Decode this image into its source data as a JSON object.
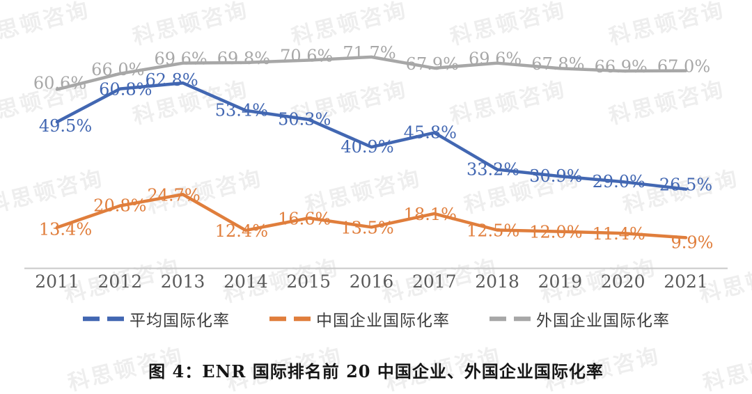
{
  "watermark": {
    "text": "科思顿咨询"
  },
  "caption": {
    "text": "图 4：ENR 国际排名前 20 中国企业、外国企业国际化率"
  },
  "chart_data": {
    "type": "line",
    "title": "图 4：ENR 国际排名前 20 中国企业、外国企业国际化率",
    "categories": [
      "2011",
      "2012",
      "2013",
      "2014",
      "2015",
      "2016",
      "2017",
      "2018",
      "2019",
      "2020",
      "2021"
    ],
    "series": [
      {
        "name": "平均国际化率",
        "color": "#4267B2",
        "values": [
          49.5,
          60.8,
          62.8,
          53.4,
          50.3,
          40.9,
          45.8,
          33.2,
          30.9,
          29.0,
          26.5
        ],
        "labels": [
          "49.5%",
          "60.8%",
          "62.8%",
          "53.4%",
          "50.3%",
          "40.9%",
          "45.8%",
          "33.2%",
          "30.9%",
          "29.0%",
          "26.5%"
        ]
      },
      {
        "name": "中国企业国际化率",
        "color": "#E07E3C",
        "values": [
          13.4,
          20.8,
          24.7,
          12.4,
          16.6,
          13.5,
          18.1,
          12.5,
          12.0,
          11.4,
          9.9
        ],
        "labels": [
          "13.4%",
          "20.8%",
          "24.7%",
          "12.4%",
          "16.6%",
          "13.5%",
          "18.1%",
          "12.5%",
          "12.0%",
          "11.4%",
          "9.9%"
        ]
      },
      {
        "name": "外国企业国际化率",
        "color": "#A7A7A7",
        "values": [
          60.6,
          66.0,
          69.6,
          69.8,
          70.6,
          71.7,
          67.9,
          69.6,
          67.8,
          66.9,
          67.0
        ],
        "labels": [
          "60.6%",
          "66.0%",
          "69.6%",
          "69.8%",
          "70.6%",
          "71.7%",
          "67.9%",
          "69.6%",
          "67.8%",
          "66.9%",
          "67.0%"
        ]
      }
    ],
    "ylim": [
      0,
      80
    ],
    "value_suffix": "%",
    "grid": false,
    "data_labels": true,
    "legend_position": "bottom",
    "axis_line_color": "#C8C8C8",
    "tick_color": "#595959"
  }
}
